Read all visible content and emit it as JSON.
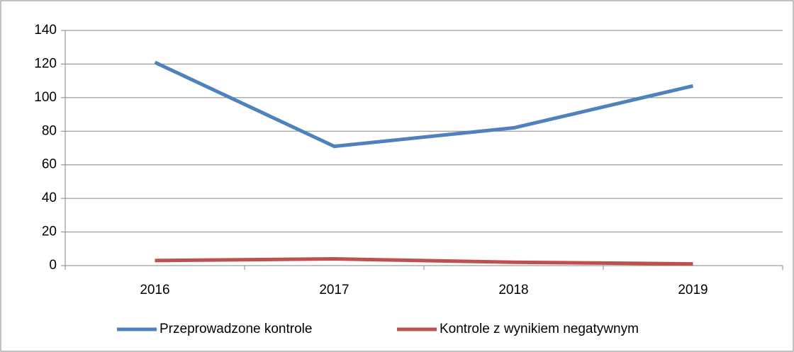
{
  "chart_data": {
    "type": "line",
    "categories": [
      "2016",
      "2017",
      "2018",
      "2019"
    ],
    "series": [
      {
        "name": "Przeprowadzone kontrole",
        "color": "#4f81bd",
        "values": [
          121,
          71,
          82,
          107
        ]
      },
      {
        "name": "Kontrole z wynikiem negatywnym",
        "color": "#c0504d",
        "values": [
          3,
          4,
          2,
          1
        ]
      }
    ],
    "ylim": [
      0,
      140
    ],
    "yticks": [
      0,
      20,
      40,
      60,
      80,
      100,
      120,
      140
    ],
    "grid": true,
    "legend": "bottom"
  }
}
